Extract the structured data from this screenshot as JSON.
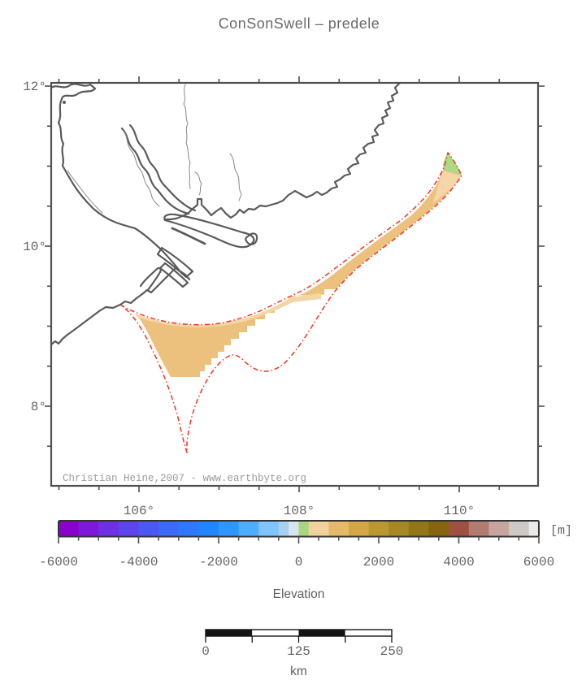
{
  "title": "ConSonSwell – predele",
  "map": {
    "attribution": "Christian Heine,2007 - www.earthbyte.org",
    "x_axis": {
      "minor_tick_interval_deg": 0.5,
      "label_interval_deg": 2,
      "tick_labels": [
        {
          "value": 106,
          "label": "106°"
        },
        {
          "value": 108,
          "label": "108°"
        },
        {
          "value": 110,
          "label": "110°"
        }
      ]
    },
    "y_axis": {
      "minor_tick_interval_deg": 0.5,
      "label_interval_deg": 2,
      "tick_labels": [
        {
          "value": 12,
          "label": "12°"
        },
        {
          "value": 10,
          "label": "10°"
        },
        {
          "value": 8,
          "label": "8°"
        }
      ]
    }
  },
  "region_colors": {
    "swell_fill": "#ecc17d",
    "swell_fill_light": "#f4d6a4",
    "land_above_sea_green": "#add884",
    "outline_red": "#ff2d1e",
    "coast_gray": "#5a5a5a"
  },
  "colorbar": {
    "title": "Elevation",
    "unit_label": "[m]",
    "min": -6000,
    "max": 6000,
    "minor_tick_interval": 500,
    "label_interval": 2000,
    "tick_labels": [
      {
        "value": -6000,
        "label": "-6000"
      },
      {
        "value": -4000,
        "label": "-4000"
      },
      {
        "value": -2000,
        "label": "-2000"
      },
      {
        "value": 0,
        "label": "0"
      },
      {
        "value": 2000,
        "label": "2000"
      },
      {
        "value": 4000,
        "label": "4000"
      },
      {
        "value": 6000,
        "label": "6000"
      }
    ],
    "segments": [
      {
        "from": -6000,
        "to": -5500,
        "color": "#8a00cd"
      },
      {
        "from": -5500,
        "to": -5000,
        "color": "#7e17dc"
      },
      {
        "from": -5000,
        "to": -4500,
        "color": "#6e2fe6"
      },
      {
        "from": -4500,
        "to": -4000,
        "color": "#5c45ee"
      },
      {
        "from": -4000,
        "to": -3500,
        "color": "#4b58f4"
      },
      {
        "from": -3500,
        "to": -3000,
        "color": "#3b6af9"
      },
      {
        "from": -3000,
        "to": -2500,
        "color": "#2c79fc"
      },
      {
        "from": -2500,
        "to": -2000,
        "color": "#2086fe"
      },
      {
        "from": -2000,
        "to": -1500,
        "color": "#2e97ff"
      },
      {
        "from": -1500,
        "to": -1000,
        "color": "#4fadff"
      },
      {
        "from": -1000,
        "to": -500,
        "color": "#7fc4fe"
      },
      {
        "from": -500,
        "to": -250,
        "color": "#a9d0f0"
      },
      {
        "from": -250,
        "to": 0,
        "color": "#d8e5f0"
      },
      {
        "from": 0,
        "to": 250,
        "color": "#a9d57f"
      },
      {
        "from": 250,
        "to": 750,
        "color": "#f0d29c"
      },
      {
        "from": 750,
        "to": 1250,
        "color": "#e6b968"
      },
      {
        "from": 1250,
        "to": 1750,
        "color": "#d4a645"
      },
      {
        "from": 1750,
        "to": 2250,
        "color": "#bb9731"
      },
      {
        "from": 2250,
        "to": 2750,
        "color": "#a58723"
      },
      {
        "from": 2750,
        "to": 3250,
        "color": "#917718"
      },
      {
        "from": 3250,
        "to": 3750,
        "color": "#876410"
      },
      {
        "from": 3750,
        "to": 4250,
        "color": "#9e5140"
      },
      {
        "from": 4250,
        "to": 4750,
        "color": "#b17b6f"
      },
      {
        "from": 4750,
        "to": 5250,
        "color": "#c6a59e"
      },
      {
        "from": 5250,
        "to": 5750,
        "color": "#cfc9c4"
      },
      {
        "from": 5750,
        "to": 6000,
        "color": "#e9e9e8"
      }
    ]
  },
  "scalebar": {
    "unit": "km",
    "length_km": 250,
    "segments": 4,
    "tick_labels": [
      {
        "value": 0,
        "label": "0"
      },
      {
        "value": 125,
        "label": "125"
      },
      {
        "value": 250,
        "label": "250"
      }
    ]
  }
}
